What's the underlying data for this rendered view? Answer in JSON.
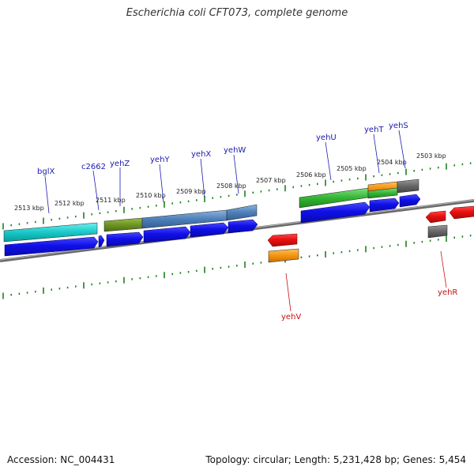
{
  "title": "Escherichia coli CFT073, complete genome",
  "footer": {
    "accession": "Accession: NC_004431",
    "topology": "Topology: circular; Length: 5,231,428 bp; Genes: 5,454"
  },
  "colors": {
    "cds_forward": "#1010e0",
    "cds_reverse": "#e00000",
    "gene_label_forward": "#1a1ab0",
    "gene_label_reverse": "#c81010",
    "backbone": "#7a7a7a",
    "ticks": "#208020"
  },
  "scale_labels": [
    "2513 kbp",
    "2512 kbp",
    "2511 kbp",
    "2510 kbp",
    "2509 kbp",
    "2508 kbp",
    "2507 kbp",
    "2506 kbp",
    "2505 kbp",
    "2504 kbp",
    "2503 kbp"
  ],
  "gene_labels_forward": [
    "bglX",
    "c2662",
    "yehZ",
    "yehY",
    "yehX",
    "yehW",
    "yehU",
    "yehT",
    "yehS"
  ],
  "gene_labels_reverse": [
    "yehV",
    "yehR"
  ]
}
